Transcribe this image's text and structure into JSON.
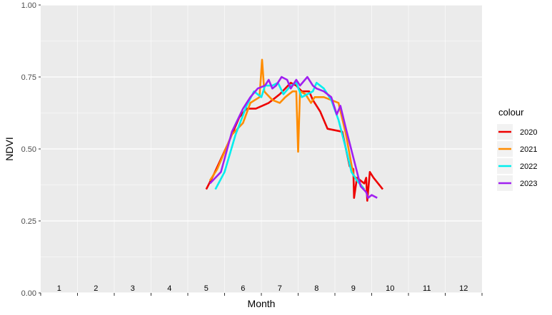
{
  "chart_data": {
    "type": "line",
    "title": "",
    "xlabel": "Month",
    "ylabel": "NDVI",
    "x_tick_labels": [
      "1",
      "2",
      "3",
      "4",
      "5",
      "6",
      "7",
      "8",
      "9",
      "10",
      "11",
      "12"
    ],
    "y_tick_labels": [
      "0.00",
      "0.25",
      "0.50",
      "0.75",
      "1.00"
    ],
    "y_ticks": [
      0,
      0.25,
      0.5,
      0.75,
      1.0
    ],
    "xlim": [
      0.5,
      12.5
    ],
    "ylim": [
      0,
      1
    ],
    "grid": true,
    "legend_title": "colour",
    "legend_position": "right",
    "series": [
      {
        "name": "2020",
        "color": "#ee0000",
        "points": [
          [
            5.0,
            0.36
          ],
          [
            5.2,
            0.41
          ],
          [
            5.6,
            0.52
          ],
          [
            5.9,
            0.61
          ],
          [
            6.1,
            0.64
          ],
          [
            6.35,
            0.64
          ],
          [
            6.7,
            0.66
          ],
          [
            7.0,
            0.69
          ],
          [
            7.15,
            0.71
          ],
          [
            7.3,
            0.73
          ],
          [
            7.45,
            0.72
          ],
          [
            7.6,
            0.7
          ],
          [
            7.8,
            0.7
          ],
          [
            7.9,
            0.67
          ],
          [
            8.1,
            0.63
          ],
          [
            8.3,
            0.57
          ],
          [
            8.7,
            0.56
          ],
          [
            8.9,
            0.44
          ],
          [
            9.0,
            0.43
          ],
          [
            9.02,
            0.33
          ],
          [
            9.1,
            0.4
          ],
          [
            9.3,
            0.38
          ],
          [
            9.35,
            0.4
          ],
          [
            9.38,
            0.32
          ],
          [
            9.45,
            0.42
          ],
          [
            9.55,
            0.4
          ],
          [
            9.8,
            0.36
          ]
        ]
      },
      {
        "name": "2021",
        "color": "#ff8c00",
        "points": [
          [
            5.1,
            0.39
          ],
          [
            5.3,
            0.43
          ],
          [
            5.7,
            0.55
          ],
          [
            6.0,
            0.59
          ],
          [
            6.2,
            0.66
          ],
          [
            6.45,
            0.68
          ],
          [
            6.52,
            0.81
          ],
          [
            6.58,
            0.7
          ],
          [
            6.65,
            0.69
          ],
          [
            6.8,
            0.67
          ],
          [
            7.0,
            0.66
          ],
          [
            7.15,
            0.68
          ],
          [
            7.25,
            0.69
          ],
          [
            7.35,
            0.7
          ],
          [
            7.45,
            0.7
          ],
          [
            7.5,
            0.49
          ],
          [
            7.55,
            0.7
          ],
          [
            7.7,
            0.69
          ],
          [
            7.8,
            0.67
          ],
          [
            7.85,
            0.66
          ],
          [
            7.95,
            0.68
          ],
          [
            8.2,
            0.68
          ],
          [
            8.4,
            0.67
          ],
          [
            8.6,
            0.66
          ],
          [
            8.8,
            0.55
          ],
          [
            9.0,
            0.41
          ],
          [
            9.3,
            0.36
          ]
        ]
      },
      {
        "name": "2022",
        "color": "#00eeee",
        "points": [
          [
            5.25,
            0.36
          ],
          [
            5.5,
            0.42
          ],
          [
            5.8,
            0.55
          ],
          [
            6.1,
            0.65
          ],
          [
            6.3,
            0.7
          ],
          [
            6.5,
            0.68
          ],
          [
            6.6,
            0.72
          ],
          [
            6.8,
            0.72
          ],
          [
            6.95,
            0.73
          ],
          [
            7.1,
            0.69
          ],
          [
            7.3,
            0.72
          ],
          [
            7.45,
            0.73
          ],
          [
            7.6,
            0.68
          ],
          [
            7.75,
            0.69
          ],
          [
            7.9,
            0.7
          ],
          [
            8.0,
            0.73
          ],
          [
            8.2,
            0.71
          ],
          [
            8.4,
            0.67
          ],
          [
            8.6,
            0.6
          ],
          [
            8.8,
            0.5
          ],
          [
            8.95,
            0.42
          ],
          [
            9.1,
            0.39
          ],
          [
            9.3,
            0.36
          ]
        ]
      },
      {
        "name": "2023",
        "color": "#a020f0",
        "points": [
          [
            5.1,
            0.38
          ],
          [
            5.4,
            0.42
          ],
          [
            5.7,
            0.56
          ],
          [
            6.0,
            0.64
          ],
          [
            6.2,
            0.68
          ],
          [
            6.4,
            0.71
          ],
          [
            6.6,
            0.72
          ],
          [
            6.7,
            0.74
          ],
          [
            6.8,
            0.71
          ],
          [
            6.9,
            0.72
          ],
          [
            7.05,
            0.75
          ],
          [
            7.2,
            0.74
          ],
          [
            7.3,
            0.71
          ],
          [
            7.45,
            0.74
          ],
          [
            7.55,
            0.72
          ],
          [
            7.75,
            0.75
          ],
          [
            7.9,
            0.72
          ],
          [
            8.0,
            0.71
          ],
          [
            8.2,
            0.7
          ],
          [
            8.4,
            0.68
          ],
          [
            8.55,
            0.62
          ],
          [
            8.65,
            0.65
          ],
          [
            8.8,
            0.57
          ],
          [
            9.0,
            0.47
          ],
          [
            9.2,
            0.37
          ],
          [
            9.35,
            0.35
          ],
          [
            9.4,
            0.33
          ],
          [
            9.5,
            0.34
          ],
          [
            9.65,
            0.33
          ]
        ]
      }
    ]
  }
}
